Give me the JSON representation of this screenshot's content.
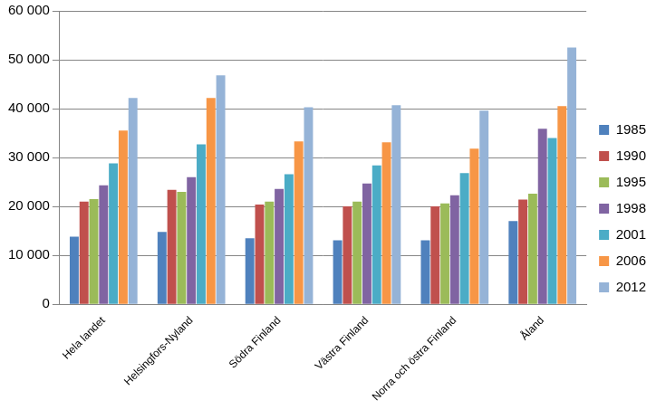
{
  "chart_data": {
    "type": "bar",
    "categories": [
      "Hela landet",
      "Helsingfors-Nyland",
      "Södra Finland",
      "Västra Finland",
      "Norra och östra Finland",
      "Åland"
    ],
    "series": [
      {
        "name": "1985",
        "color": "#4f81bd",
        "values": [
          13800,
          14800,
          13500,
          13100,
          13100,
          17000
        ]
      },
      {
        "name": "1990",
        "color": "#c0504d",
        "values": [
          21000,
          23400,
          20400,
          20000,
          20000,
          21400
        ]
      },
      {
        "name": "1995",
        "color": "#9bbb59",
        "values": [
          21500,
          23000,
          21000,
          21000,
          20600,
          22600
        ]
      },
      {
        "name": "1998",
        "color": "#8064a2",
        "values": [
          24300,
          26000,
          23600,
          24700,
          22300,
          35900
        ]
      },
      {
        "name": "2001",
        "color": "#4bacc6",
        "values": [
          28800,
          32700,
          26600,
          28400,
          26800,
          34000
        ]
      },
      {
        "name": "2006",
        "color": "#f79646",
        "values": [
          35500,
          42200,
          33300,
          33100,
          31800,
          40500
        ]
      },
      {
        "name": "2012",
        "color": "#95b3d7",
        "values": [
          42200,
          46800,
          40300,
          40700,
          39600,
          52500
        ]
      }
    ],
    "ylim": [
      0,
      60000
    ],
    "yticks": [
      0,
      {
        "value": 10000,
        "label": "10 000"
      },
      {
        "value": 20000,
        "label": "20 000"
      },
      {
        "value": 30000,
        "label": "30 000"
      },
      {
        "value": 40000,
        "label": "40 000"
      },
      {
        "value": 50000,
        "label": "50 000"
      },
      {
        "value": 60000,
        "label": "60 000"
      }
    ],
    "grid": true,
    "legend": "right"
  }
}
